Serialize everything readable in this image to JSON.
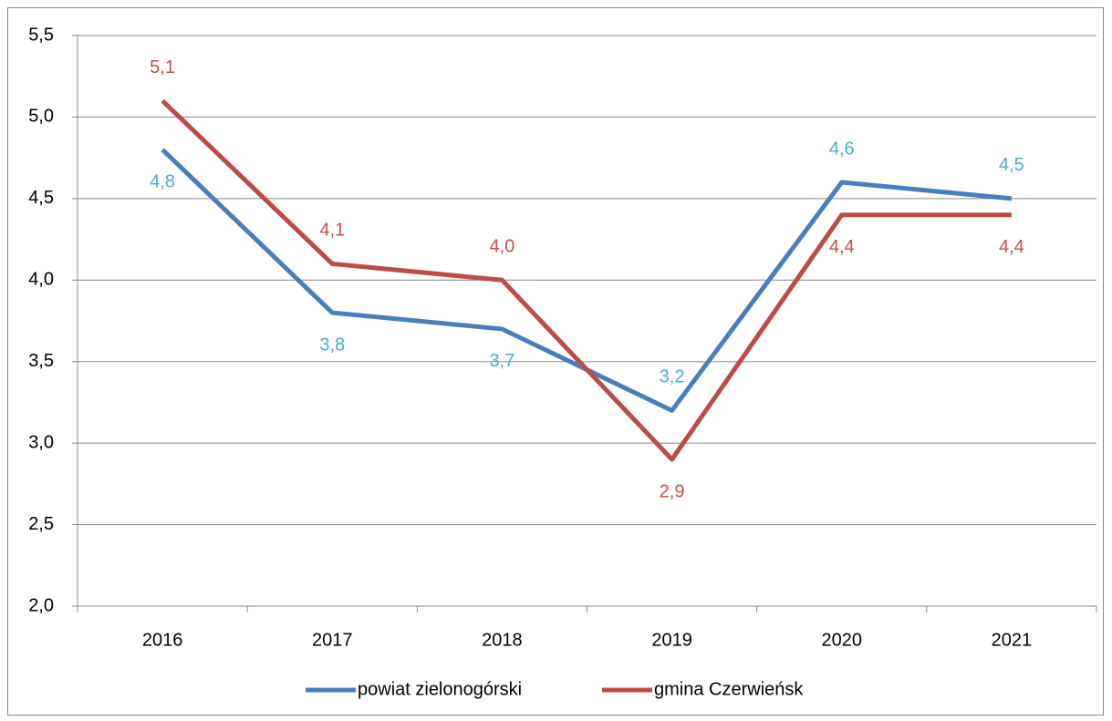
{
  "chart_data": {
    "type": "line",
    "categories": [
      "2016",
      "2017",
      "2018",
      "2019",
      "2020",
      "2021"
    ],
    "series": [
      {
        "name": "powiat zielonogórski",
        "color": "#4a7ebb",
        "label_color": "#4bacc6",
        "values": [
          4.8,
          3.8,
          3.7,
          3.2,
          4.6,
          4.5
        ],
        "value_labels": [
          "4,8",
          "3,8",
          "3,7",
          "3,2",
          "4,6",
          "4,5"
        ]
      },
      {
        "name": "gmina Czerwieńsk",
        "color": "#be4b48",
        "label_color": "#c0504d",
        "values": [
          5.1,
          4.1,
          4.0,
          2.9,
          4.4,
          4.4
        ],
        "value_labels": [
          "5,1",
          "4,1",
          "4,0",
          "2,9",
          "4,4",
          "4,4"
        ]
      }
    ],
    "ylim": [
      2.0,
      5.5
    ],
    "yticks": [
      {
        "value": 2.0,
        "label": "2,0"
      },
      {
        "value": 2.5,
        "label": "2,5"
      },
      {
        "value": 3.0,
        "label": "3,0"
      },
      {
        "value": 3.5,
        "label": "3,5"
      },
      {
        "value": 4.0,
        "label": "4,0"
      },
      {
        "value": 4.5,
        "label": "4,5"
      },
      {
        "value": 5.0,
        "label": "5,0"
      },
      {
        "value": 5.5,
        "label": "5,5"
      }
    ],
    "grid": true,
    "legend": "bottom"
  }
}
